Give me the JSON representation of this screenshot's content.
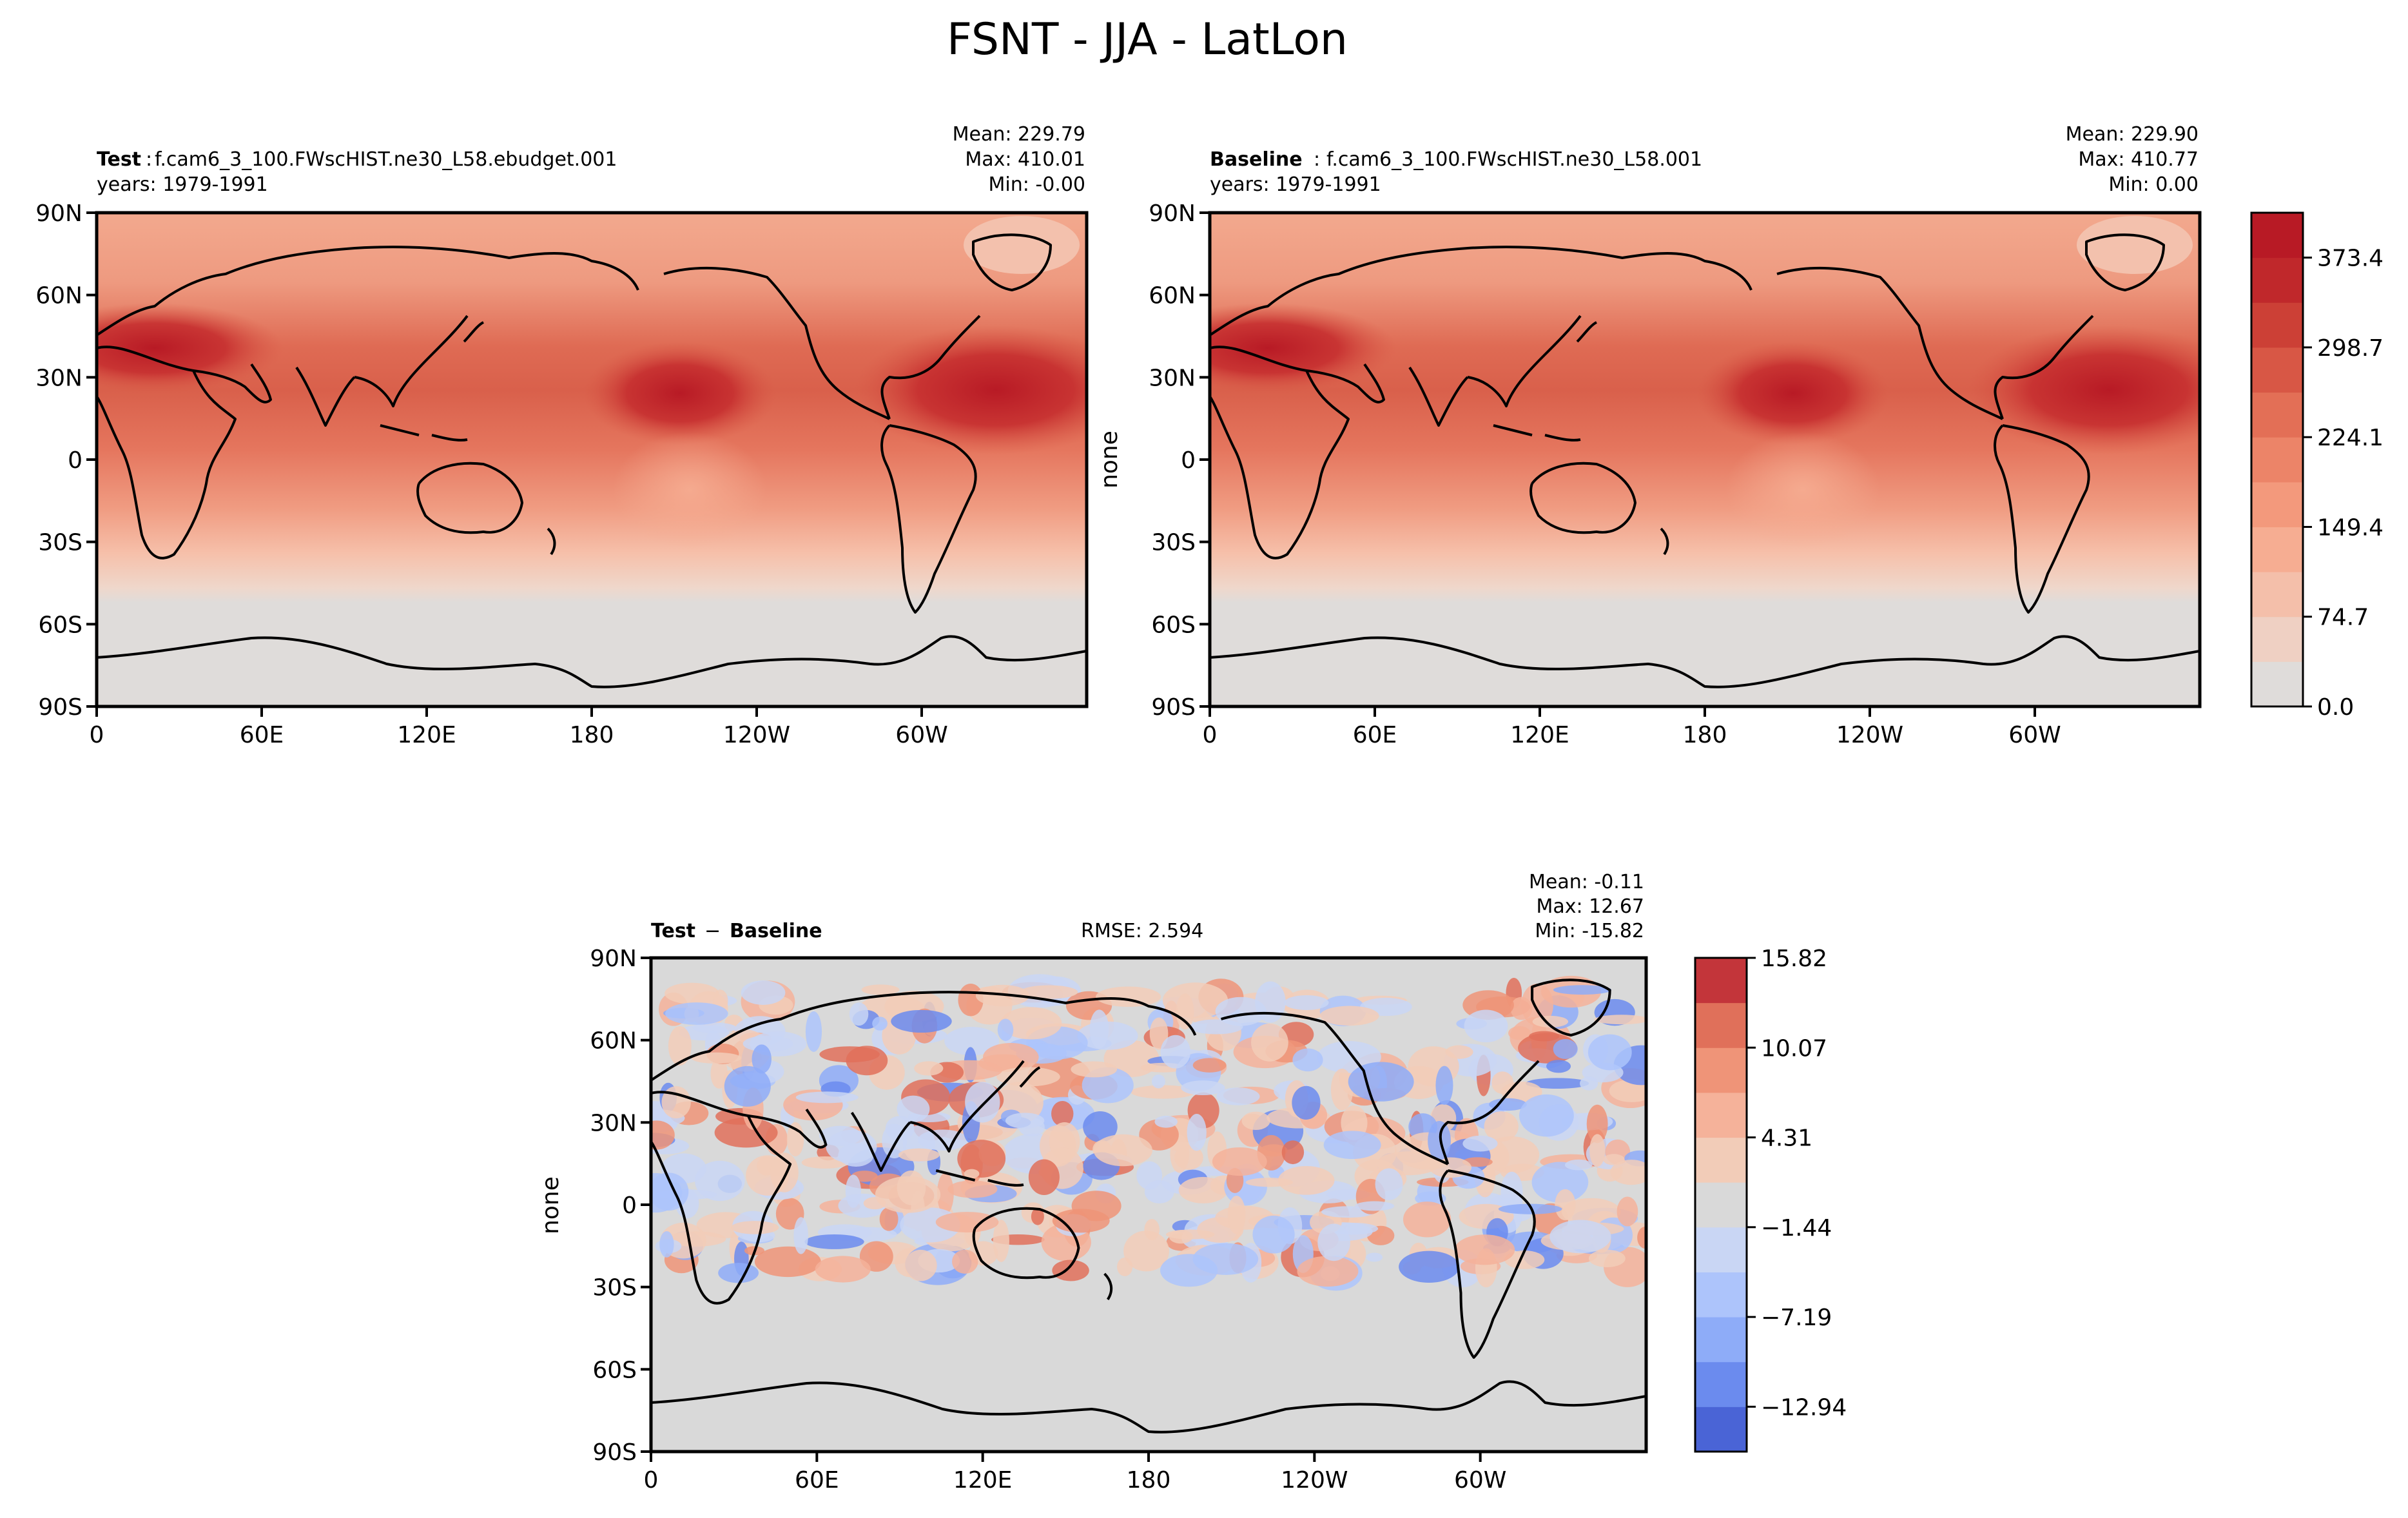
{
  "figure": {
    "suptitle": "FSNT - JJA - LatLon"
  },
  "panels": [
    {
      "id": "test",
      "left_label": "Test",
      "case_name": "f.cam6_3_100.FWscHIST.ne30_L58.ebudget.001",
      "years_text": "years: 1979-1991",
      "stats": {
        "mean": "Mean: 229.79",
        "max": "Max: 410.01",
        "min": "Min: -0.00"
      },
      "ylabel": "",
      "kind": "abs"
    },
    {
      "id": "baseline",
      "left_label": "Baseline",
      "case_name": "f.cam6_3_100.FWscHIST.ne30_L58.001",
      "years_text": "years: 1979-1991",
      "stats": {
        "mean": "Mean: 229.90",
        "max": "Max: 410.77",
        "min": "Min:  0.00"
      },
      "ylabel": "none",
      "kind": "abs"
    },
    {
      "id": "diff",
      "left_label": "Test",
      "left_label_minus": "Baseline",
      "rmse_text": "RMSE: 2.594",
      "stats": {
        "mean": "Mean: -0.11",
        "max": "Max: 12.67",
        "min": "Min: -15.82"
      },
      "ylabel": "none",
      "kind": "diff"
    }
  ],
  "axes": {
    "lat_ticks": [
      "90N",
      "60N",
      "30N",
      "0",
      "30S",
      "60S",
      "90S"
    ],
    "lon_ticks": [
      "0",
      "60E",
      "120E",
      "180",
      "120W",
      "60W"
    ]
  },
  "colorbars": {
    "abs": {
      "tick_labels": [
        "0.0",
        "74.7",
        "149.4",
        "224.1",
        "298.7",
        "373.4"
      ],
      "level_count": 11,
      "colors": [
        "#dfdcda",
        "#efd0c3",
        "#f4bfaa",
        "#f6ad92",
        "#f3997c",
        "#ec8468",
        "#e36f56",
        "#d85745",
        "#cc4036",
        "#c0282b",
        "#b81a25"
      ]
    },
    "diff": {
      "tick_labels": [
        "15.82",
        "10.07",
        "4.31",
        "−1.44",
        "−7.19",
        "−12.94"
      ],
      "level_count": 11,
      "colors": [
        "#4a64d6",
        "#6b8bee",
        "#8eacf8",
        "#adc4fb",
        "#c9d6f4",
        "#d9d9d9",
        "#f2ccb8",
        "#f5b29a",
        "#ef9478",
        "#e0705a",
        "#c3353a"
      ]
    }
  },
  "chart_data": [
    {
      "type": "heatmap",
      "title": "Test",
      "variable": "FSNT",
      "season": "JJA",
      "colorbar_levels": [
        0.0,
        74.7,
        149.4,
        224.1,
        298.7,
        373.4
      ],
      "stats": {
        "mean": 229.79,
        "max": 410.01,
        "min": -0.0
      }
    },
    {
      "type": "heatmap",
      "title": "Baseline",
      "variable": "FSNT",
      "season": "JJA",
      "colorbar_levels": [
        0.0,
        74.7,
        149.4,
        224.1,
        298.7,
        373.4
      ],
      "stats": {
        "mean": 229.9,
        "max": 410.77,
        "min": 0.0
      }
    },
    {
      "type": "heatmap",
      "title": "Test - Baseline",
      "variable": "FSNT",
      "season": "JJA",
      "colorbar_levels": [
        15.82,
        10.07,
        4.31,
        -1.44,
        -7.19,
        -12.94
      ],
      "stats": {
        "mean": -0.11,
        "max": 12.67,
        "min": -15.82,
        "rmse": 2.594
      }
    }
  ]
}
